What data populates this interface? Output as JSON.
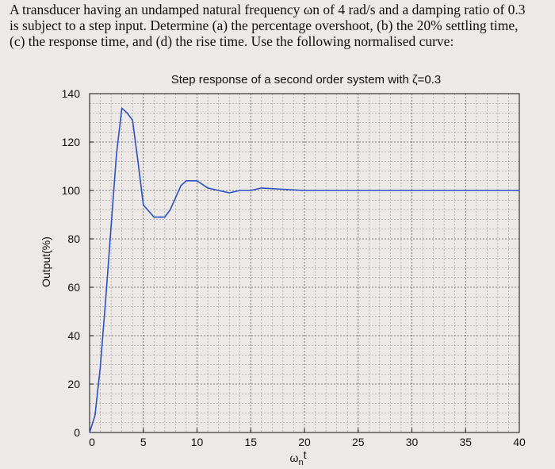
{
  "question": {
    "lines": [
      "A transducer having an undamped natural frequency ωn of 4 rad/s and a damping ratio of 0.3",
      "is subject to a step input. Determine (a) the percentage overshoot, (b) the 20% settling time,",
      "(c) the response time, and (d) the rise time. Use the following normalised curve:"
    ]
  },
  "chart_data": {
    "type": "line",
    "title": "Step response of a second order system with ζ=0.3",
    "xlabel": "ω",
    "xlabel_sub": "n",
    "xlabel_suffix": "t",
    "ylabel": "Output(%)",
    "xlim": [
      0,
      40
    ],
    "ylim": [
      0,
      140
    ],
    "xticks": [
      "0",
      "5",
      "10",
      "15",
      "20",
      "25",
      "30",
      "35",
      "40"
    ],
    "yticks": [
      "0",
      "20",
      "40",
      "60",
      "80",
      "100",
      "120",
      "140"
    ],
    "grid": true,
    "series": [
      {
        "color": "#2b4fc4",
        "x": [
          0,
          0.5,
          1,
          1.5,
          2,
          2.5,
          3,
          3.5,
          4,
          4.5,
          5,
          6,
          7,
          7.5,
          8,
          8.5,
          9,
          10,
          11,
          12,
          13,
          14,
          15,
          16,
          18,
          20,
          24,
          30,
          40
        ],
        "y": [
          0,
          7,
          27,
          55,
          85,
          115,
          134,
          132,
          129,
          112,
          94,
          89,
          89,
          92,
          97,
          102,
          104,
          104,
          101,
          100,
          99,
          100,
          100,
          101,
          100.5,
          100,
          100,
          100,
          100
        ]
      }
    ]
  }
}
